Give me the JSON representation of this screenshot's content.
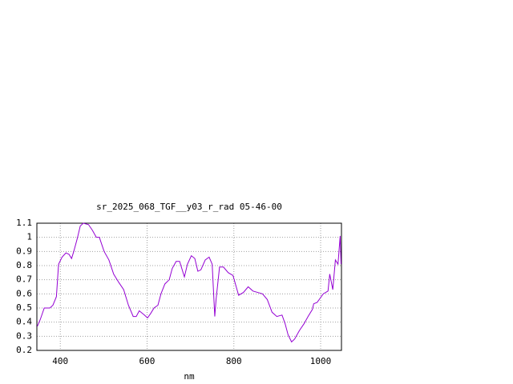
{
  "chart_data": {
    "type": "line",
    "title": "sr_2025_068_TGF__y03_r_rad 05-46-00",
    "xlabel": "nm",
    "x": [
      347,
      354,
      363,
      376,
      383,
      391,
      396,
      404,
      413,
      420,
      426,
      431,
      439,
      446,
      453,
      465,
      474,
      483,
      490,
      501,
      512,
      523,
      535,
      546,
      557,
      568,
      575,
      582,
      594,
      601,
      608,
      616,
      625,
      632,
      641,
      651,
      658,
      667,
      675,
      686,
      693,
      702,
      710,
      717,
      724,
      734,
      743,
      750,
      756,
      759,
      767,
      776,
      787,
      798,
      811,
      822,
      833,
      844,
      855,
      866,
      877,
      888,
      899,
      911,
      918,
      925,
      933,
      940,
      951,
      962,
      971,
      981,
      984,
      992,
      999,
      1006,
      1017,
      1021,
      1028,
      1034,
      1040,
      1045,
      1047
    ],
    "series": [
      {
        "color": "#9400d3",
        "values": [
          0.37,
          0.42,
          0.5,
          0.5,
          0.52,
          0.58,
          0.81,
          0.86,
          0.89,
          0.88,
          0.85,
          0.9,
          0.99,
          1.08,
          1.1,
          1.09,
          1.05,
          1.0,
          1.0,
          0.9,
          0.84,
          0.74,
          0.68,
          0.63,
          0.52,
          0.44,
          0.44,
          0.48,
          0.45,
          0.43,
          0.46,
          0.5,
          0.52,
          0.6,
          0.67,
          0.7,
          0.78,
          0.83,
          0.83,
          0.72,
          0.81,
          0.87,
          0.85,
          0.76,
          0.77,
          0.84,
          0.86,
          0.81,
          0.44,
          0.56,
          0.79,
          0.79,
          0.75,
          0.73,
          0.59,
          0.61,
          0.65,
          0.62,
          0.61,
          0.6,
          0.56,
          0.47,
          0.44,
          0.45,
          0.39,
          0.31,
          0.26,
          0.28,
          0.34,
          0.39,
          0.44,
          0.49,
          0.53,
          0.54,
          0.57,
          0.6,
          0.62,
          0.74,
          0.63,
          0.84,
          0.81,
          1.01,
          0.81
        ]
      }
    ],
    "xlim": [
      346,
      1048
    ],
    "xticks": [
      400,
      600,
      800,
      1000
    ],
    "ylim": [
      0.2,
      1.1
    ],
    "yticks": [
      0.2,
      0.3,
      0.4,
      0.5,
      0.6,
      0.7,
      0.8,
      0.9,
      1,
      1.1
    ],
    "grid": true
  }
}
